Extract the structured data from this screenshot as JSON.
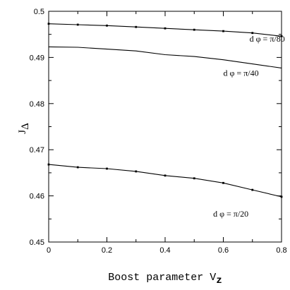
{
  "chart_data": {
    "type": "line",
    "xlabel": "Boost parameter V",
    "xlabel_sub": "z",
    "ylabel": "J",
    "ylabel_sub": "Δ",
    "xlim": [
      0,
      0.8
    ],
    "ylim": [
      0.45,
      0.5
    ],
    "x_ticks": [
      0,
      0.2,
      0.4,
      0.6,
      0.8
    ],
    "y_ticks": [
      0.45,
      0.46,
      0.47,
      0.48,
      0.49,
      0.5
    ],
    "x_tick_labels": [
      "0",
      "0.2",
      "0.4",
      "0.6",
      "0.8"
    ],
    "y_tick_labels": [
      "0.45",
      "0.46",
      "0.47",
      "0.48",
      "0.49",
      "0.5"
    ],
    "grid": false,
    "x": [
      0,
      0.1,
      0.2,
      0.3,
      0.4,
      0.5,
      0.6,
      0.7,
      0.8
    ],
    "series": [
      {
        "name": "d φ = π/80",
        "values": [
          0.4973,
          0.4971,
          0.4969,
          0.4966,
          0.4963,
          0.496,
          0.4957,
          0.4953,
          0.4946
        ],
        "markers": true
      },
      {
        "name": "d φ = π/40",
        "values": [
          0.4923,
          0.4922,
          0.4918,
          0.4914,
          0.4906,
          0.4902,
          0.4895,
          0.4886,
          0.4877
        ],
        "markers": false
      },
      {
        "name": "d φ = π/20",
        "values": [
          0.4668,
          0.4662,
          0.4659,
          0.4653,
          0.4644,
          0.4638,
          0.4628,
          0.4613,
          0.4598
        ],
        "markers": true
      }
    ],
    "annotations": [
      {
        "text": "d φ = π/80",
        "x": 0.69,
        "y": 0.4934
      },
      {
        "text": "d φ = π/40",
        "x": 0.6,
        "y": 0.486
      },
      {
        "text": "d φ = π/20",
        "x": 0.565,
        "y": 0.4555
      }
    ]
  }
}
